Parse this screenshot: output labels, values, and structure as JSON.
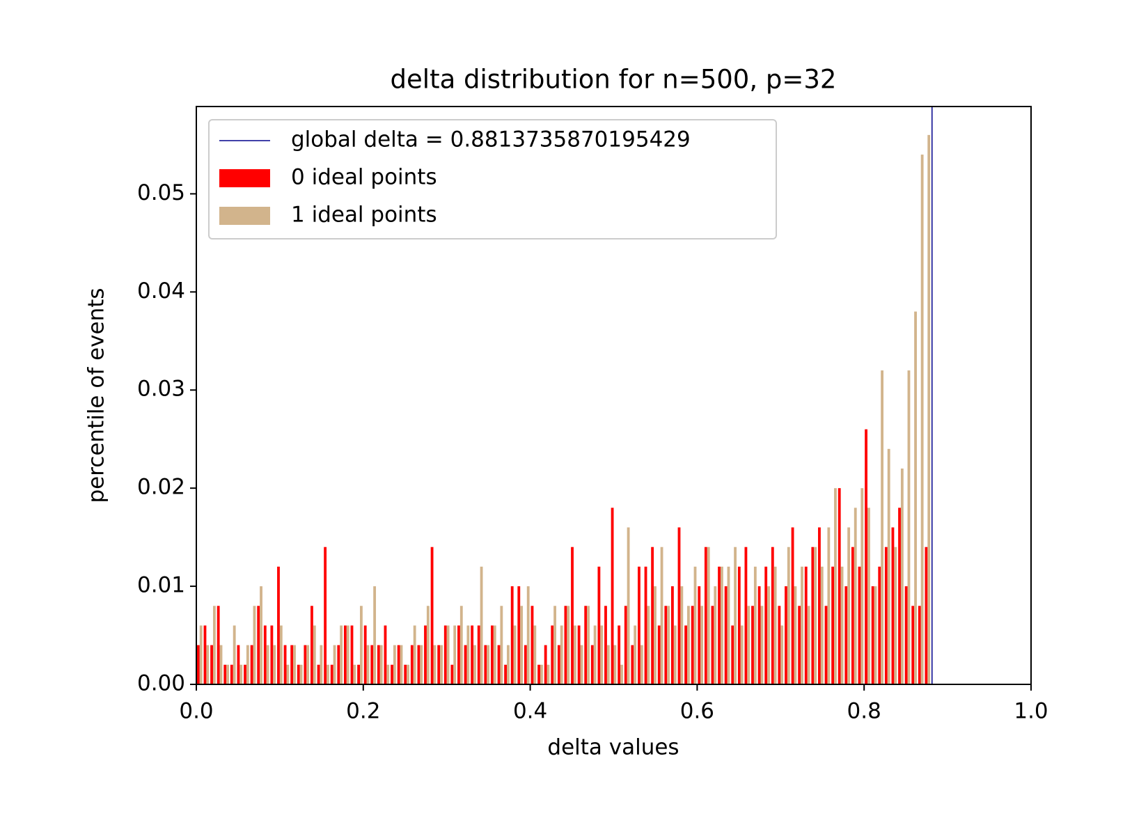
{
  "chart_data": {
    "type": "histogram",
    "title": "delta distribution for n=500, p=32",
    "x_label": "delta values",
    "y_label": "percentile of events",
    "bins": [
      0,
      0.008,
      0.016,
      0.024,
      0.032,
      0.04,
      0.048,
      0.056,
      0.064,
      0.072,
      0.08,
      0.088,
      0.096,
      0.104,
      0.112,
      0.12,
      0.128,
      0.136,
      0.144,
      0.152,
      0.16,
      0.168,
      0.176,
      0.184,
      0.192,
      0.2,
      0.208,
      0.216,
      0.224,
      0.232,
      0.24,
      0.248,
      0.256,
      0.264,
      0.272,
      0.28,
      0.288,
      0.296,
      0.304,
      0.312,
      0.32,
      0.328,
      0.336,
      0.344,
      0.352,
      0.36,
      0.368,
      0.376,
      0.384,
      0.392,
      0.4,
      0.408,
      0.416,
      0.424,
      0.432,
      0.44,
      0.448,
      0.456,
      0.464,
      0.472,
      0.48,
      0.488,
      0.496,
      0.504,
      0.512,
      0.52,
      0.528,
      0.536,
      0.544,
      0.552,
      0.56,
      0.568,
      0.576,
      0.584,
      0.592,
      0.6,
      0.608,
      0.616,
      0.624,
      0.632,
      0.64,
      0.648,
      0.656,
      0.664,
      0.672,
      0.68,
      0.688,
      0.696,
      0.704,
      0.712,
      0.72,
      0.728,
      0.736,
      0.744,
      0.752,
      0.76,
      0.768,
      0.776,
      0.784,
      0.792,
      0.8,
      0.808,
      0.816,
      0.824,
      0.832,
      0.84,
      0.848,
      0.856,
      0.864,
      0.872,
      0.88
    ],
    "series": [
      {
        "name": "0 ideal points",
        "color": "#ff0000",
        "values": [
          0.004,
          0.006,
          0.004,
          0.008,
          0.002,
          0.002,
          0.004,
          0.002,
          0.004,
          0.008,
          0.006,
          0.006,
          0.012,
          0.004,
          0.004,
          0.002,
          0.004,
          0.008,
          0.002,
          0.014,
          0.002,
          0.004,
          0.006,
          0.006,
          0.002,
          0.006,
          0.004,
          0.004,
          0.006,
          0.002,
          0.004,
          0.002,
          0.004,
          0.004,
          0.006,
          0.014,
          0.004,
          0.006,
          0.002,
          0.006,
          0.004,
          0.006,
          0.006,
          0.004,
          0.006,
          0.004,
          0.002,
          0.01,
          0.01,
          0.004,
          0.008,
          0.002,
          0.004,
          0.006,
          0.004,
          0.008,
          0.014,
          0.006,
          0.008,
          0.004,
          0.012,
          0.008,
          0.018,
          0.006,
          0.008,
          0.004,
          0.012,
          0.012,
          0.014,
          0.006,
          0.008,
          0.01,
          0.016,
          0.006,
          0.008,
          0.01,
          0.014,
          0.008,
          0.012,
          0.01,
          0.006,
          0.012,
          0.014,
          0.008,
          0.01,
          0.012,
          0.014,
          0.008,
          0.01,
          0.016,
          0.008,
          0.012,
          0.014,
          0.016,
          0.008,
          0.012,
          0.02,
          0.01,
          0.014,
          0.012,
          0.026,
          0.01,
          0.012,
          0.014,
          0.016,
          0.018,
          0.01,
          0.008,
          0.008,
          0.014
        ]
      },
      {
        "name": "1 ideal points",
        "color": "#d2b48c",
        "values": [
          0.006,
          0.004,
          0.008,
          0.004,
          0.002,
          0.006,
          0.002,
          0.004,
          0.008,
          0.01,
          0.004,
          0.004,
          0.006,
          0.002,
          0.004,
          0.002,
          0.004,
          0.006,
          0.004,
          0.002,
          0.004,
          0.006,
          0.006,
          0.002,
          0.008,
          0.004,
          0.01,
          0.004,
          0.002,
          0.004,
          0.004,
          0.002,
          0.006,
          0.004,
          0.008,
          0.004,
          0.004,
          0.006,
          0.006,
          0.008,
          0.006,
          0.004,
          0.012,
          0.004,
          0.006,
          0.008,
          0.004,
          0.006,
          0.008,
          0.01,
          0.006,
          0.002,
          0.002,
          0.008,
          0.006,
          0.008,
          0.006,
          0.004,
          0.008,
          0.006,
          0.006,
          0.004,
          0.004,
          0.002,
          0.016,
          0.006,
          0.004,
          0.008,
          0.01,
          0.014,
          0.008,
          0.006,
          0.01,
          0.008,
          0.012,
          0.008,
          0.014,
          0.01,
          0.012,
          0.012,
          0.014,
          0.006,
          0.008,
          0.012,
          0.008,
          0.01,
          0.012,
          0.006,
          0.014,
          0.01,
          0.012,
          0.008,
          0.014,
          0.012,
          0.016,
          0.02,
          0.012,
          0.016,
          0.018,
          0.02,
          0.018,
          0.01,
          0.032,
          0.024,
          0.014,
          0.022,
          0.032,
          0.038,
          0.054,
          0.056
        ]
      }
    ],
    "vline": {
      "name": "global delta = 0.8813735870195429",
      "value": 0.8813735870195429,
      "color": "#00008b"
    },
    "xlim": [
      0,
      1
    ],
    "ylim": [
      0,
      0.0589
    ],
    "xticks": [
      {
        "value": 0,
        "label": "0.0"
      },
      0.2,
      0.4,
      0.6,
      0.8,
      {
        "value": 1,
        "label": "1.0"
      }
    ],
    "yticks": [
      {
        "value": 0,
        "label": "0.00"
      },
      0.01,
      0.02,
      0.03,
      0.04,
      0.05
    ],
    "legend": "upper left",
    "grid": false
  }
}
